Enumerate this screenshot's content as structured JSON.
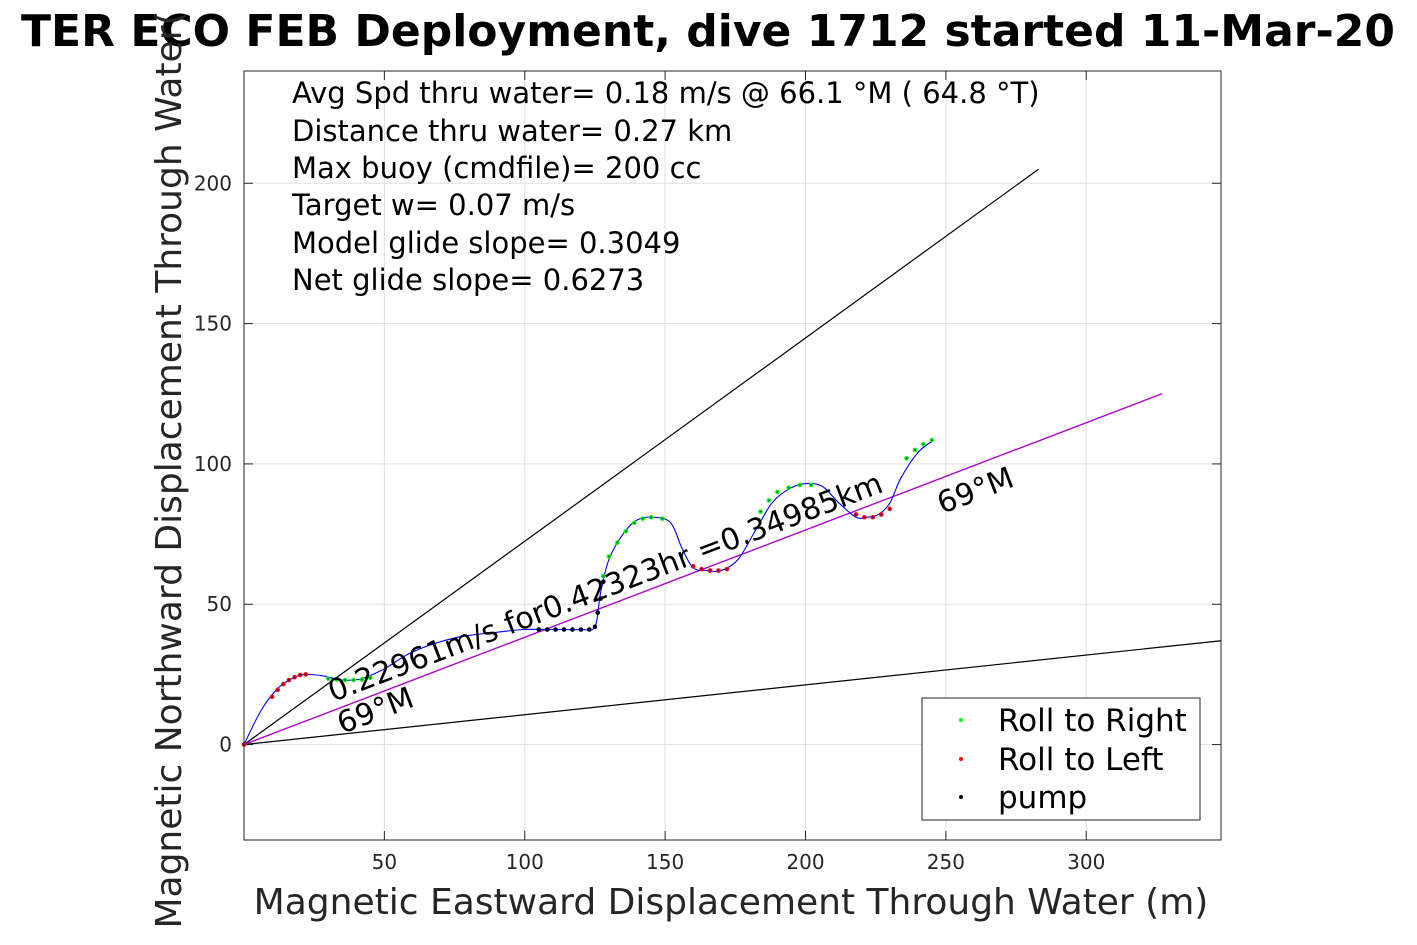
{
  "chart_data": {
    "type": "scatter",
    "title": "TER ECO FEB Deployment, dive 1712 started 11-Mar-20",
    "xlabel": "Magnetic Eastward Displacement Through Water (m)",
    "ylabel": "Magnetic Northward Displacement Through Water(",
    "xlim": [
      0,
      348
    ],
    "ylim": [
      -34,
      240
    ],
    "xticks": [
      50,
      100,
      150,
      200,
      250,
      300
    ],
    "yticks": [
      0,
      50,
      100,
      150,
      200
    ],
    "grid": true,
    "legend_position": "bottom-right",
    "info_lines": [
      "Avg Spd thru water=  0.18 m/s @  66.1 °M ( 64.8 °T)",
      "Distance thru water=  0.27 km",
      "Max buoy (cmdfile)= 200 cc",
      "Target w= 0.07 m/s",
      "Model glide slope= 0.3049",
      "Net glide slope= 0.6273"
    ],
    "labels": {
      "speed": "0.22961m/s for0.42323hr =0.34985km",
      "heading_near": "69°M",
      "heading_far": "69°M"
    },
    "colors": {
      "track": "#0000ff",
      "roll_right": "#00ff00",
      "roll_left": "#ff0000",
      "pump": "#000000",
      "heading_line": "#cc00cc",
      "cone": "#000000"
    },
    "cone_lines": [
      {
        "x": [
          0,
          283
        ],
        "y": [
          0,
          205
        ]
      },
      {
        "x": [
          0,
          348
        ],
        "y": [
          0,
          37
        ]
      }
    ],
    "heading_line": {
      "x": [
        0,
        327
      ],
      "y": [
        0,
        125
      ]
    },
    "track": {
      "x": [
        0,
        6,
        12,
        18,
        22,
        28,
        35,
        42,
        50,
        60,
        75,
        90,
        100,
        112,
        120,
        125,
        127,
        130,
        135,
        140,
        146,
        152,
        156,
        160,
        165,
        170,
        176,
        182,
        188,
        194,
        200,
        206,
        212,
        218,
        222,
        226,
        230,
        234,
        240,
        245
      ],
      "y": [
        0,
        12,
        20,
        24,
        25,
        24.5,
        23,
        23.5,
        27,
        33,
        38,
        40,
        41,
        41,
        41,
        42,
        54,
        66,
        75,
        80,
        81,
        79,
        70,
        63,
        62,
        62,
        66,
        76,
        86,
        91,
        93,
        92,
        86,
        81,
        81,
        82,
        86,
        95,
        104,
        108
      ]
    },
    "series": [
      {
        "name": "Roll to Right",
        "marker_color": "#00ff00",
        "x": [
          30,
          33,
          36,
          39,
          42,
          45,
          128,
          130,
          133,
          136,
          139,
          142,
          145,
          149,
          184,
          187,
          190,
          194,
          198,
          202,
          236,
          239,
          242,
          245
        ],
        "y": [
          23.5,
          23.2,
          23,
          23,
          23.2,
          23.8,
          60,
          67,
          72,
          76,
          79,
          80.5,
          81,
          80.5,
          83,
          87,
          90,
          91.5,
          92.5,
          92.5,
          102,
          105,
          107,
          108.5
        ]
      },
      {
        "name": "Roll to Left",
        "marker_color": "#ff0000",
        "x": [
          0,
          10,
          12,
          14,
          16,
          18,
          20,
          22,
          160,
          163,
          166,
          169,
          172,
          218,
          221,
          224,
          227,
          230
        ],
        "y": [
          0,
          17,
          19.5,
          21.5,
          23,
          24,
          24.8,
          25,
          63.5,
          62.5,
          62,
          62,
          62.5,
          82,
          81,
          81,
          82,
          84
        ]
      },
      {
        "name": "pump",
        "marker_color": "#000000",
        "x": [
          105,
          108,
          111,
          114,
          117,
          120,
          123,
          125,
          126,
          127,
          128
        ],
        "y": [
          41,
          41,
          41,
          41,
          41,
          41,
          41,
          42,
          47,
          52,
          58
        ]
      }
    ]
  }
}
